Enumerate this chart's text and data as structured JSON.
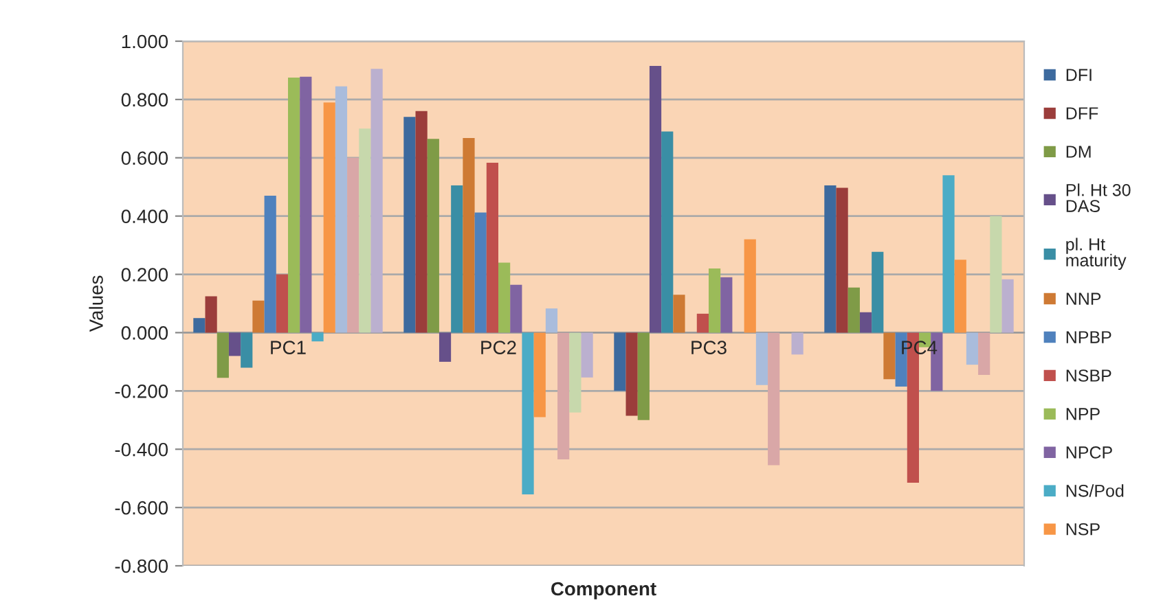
{
  "chart_data": {
    "type": "bar",
    "xlabel": "Component",
    "ylabel": "Values",
    "categories": [
      "PC1",
      "PC2",
      "PC3",
      "PC4"
    ],
    "ylim": [
      -0.8,
      1.0
    ],
    "yticks": [
      {
        "value": -0.8,
        "label": "-0.800"
      },
      {
        "value": -0.6,
        "label": "-0.600"
      },
      {
        "value": -0.4,
        "label": "-0.400"
      },
      {
        "value": -0.2,
        "label": "-0.200"
      },
      {
        "value": 0,
        "label": "0.000"
      },
      {
        "value": 0.2,
        "label": "0.200"
      },
      {
        "value": 0.4,
        "label": "0.400"
      },
      {
        "value": 0.6,
        "label": "0.600"
      },
      {
        "value": 0.8,
        "label": "0.800"
      },
      {
        "value": 1.0,
        "label": "1.000"
      }
    ],
    "grid": "y",
    "legend": "right",
    "series": [
      {
        "name": "DFI",
        "color": "#3d6a9e",
        "values": [
          0.05,
          0.74,
          -0.2,
          0.505
        ]
      },
      {
        "name": "DFF",
        "color": "#9b3d3b",
        "values": [
          0.125,
          0.76,
          -0.285,
          0.497
        ]
      },
      {
        "name": "DM",
        "color": "#7f9b47",
        "values": [
          -0.155,
          0.665,
          -0.3,
          0.155
        ]
      },
      {
        "name": "Pl. Ht 30 DAS",
        "color": "#66508a",
        "values": [
          -0.08,
          -0.1,
          0.915,
          0.07
        ]
      },
      {
        "name": "pl. Ht maturity",
        "color": "#3a8ea5",
        "values": [
          -0.12,
          0.505,
          0.69,
          0.277
        ]
      },
      {
        "name": "NNP",
        "color": "#ce7a34",
        "values": [
          0.11,
          0.668,
          0.13,
          -0.16
        ]
      },
      {
        "name": "NPBP",
        "color": "#4f81bd",
        "values": [
          0.47,
          0.412,
          null,
          -0.185
        ]
      },
      {
        "name": "NSBP",
        "color": "#c0504d",
        "values": [
          0.2,
          0.583,
          0.065,
          -0.515
        ]
      },
      {
        "name": "NPP",
        "color": "#9bbb59",
        "values": [
          0.875,
          0.24,
          0.22,
          -0.05
        ]
      },
      {
        "name": "NPCP",
        "color": "#8064a2",
        "values": [
          0.878,
          0.164,
          0.19,
          -0.2
        ]
      },
      {
        "name": "NS/Pod",
        "color": "#4bacc6",
        "values": [
          -0.03,
          -0.555,
          null,
          0.54
        ]
      },
      {
        "name": "NSP",
        "color": "#f79646",
        "values": [
          0.79,
          -0.29,
          0.32,
          0.25
        ]
      },
      {
        "color": "#a9bcdc",
        "values": [
          0.845,
          0.083,
          -0.18,
          -0.11
        ]
      },
      {
        "color": "#d9a7a7",
        "values": [
          0.6,
          -0.435,
          -0.455,
          -0.145
        ]
      },
      {
        "color": "#c7d8ac",
        "values": [
          0.7,
          -0.274,
          null,
          0.4
        ]
      },
      {
        "color": "#bbb0cf",
        "values": [
          0.905,
          -0.154,
          -0.075,
          0.183
        ]
      }
    ]
  }
}
